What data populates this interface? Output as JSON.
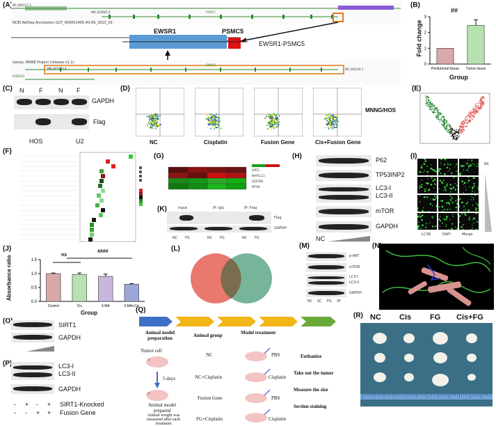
{
  "panels": {
    "A": "(A)",
    "B": "(B)",
    "C": "(C)",
    "D": "(D)",
    "E": "(E)",
    "F": "(F)",
    "G": "(G)",
    "H": "(H)",
    "I": "(I)",
    "J": "(J)",
    "K": "(K)",
    "L": "(L)",
    "M": "(M)",
    "N": "(N)",
    "O": "(O)",
    "P": "(P)",
    "Q": "(Q)",
    "R": "(R)"
  },
  "panelA": {
    "top_track_text": "NCBI RefSeq Annotation GCF_000001405.40-RS_2023_03",
    "gene_left": "EWSR1",
    "gene_right": "PSMC5",
    "fusion_label": "EWSR1-PSMC5",
    "bottom_track_text": "Genes, MANE Project (release v1.1)",
    "psmc5_small": "PSMC5",
    "ewsr1_small": "EWSR1",
    "nm_top_left": "NP_060117.3",
    "nm_top2": "NM_002805.6",
    "nm_bot1": "NM_005243.4",
    "nm_bot2": "NP_005234.1",
    "rhbdd3": "RHBDD3"
  },
  "panelB": {
    "significance": "##",
    "ylabel": "Fold change",
    "xlabel": "Group",
    "chart_data": {
      "type": "bar",
      "categories": [
        "Peritumoral tissue",
        "Tumor tissue"
      ],
      "values": [
        1.0,
        2.45
      ],
      "errors": [
        0,
        0.35
      ],
      "ylim": [
        0,
        3
      ],
      "yticks": [
        "0",
        "1",
        "2",
        "3"
      ],
      "colors": [
        "#d9a8a8",
        "#b6e2b0"
      ]
    }
  },
  "panelC": {
    "lanes": [
      "N",
      "F",
      "N",
      "F"
    ],
    "row1": "GAPDH",
    "row2": "Flag",
    "cells": [
      "HOS",
      "U2"
    ]
  },
  "panelD": {
    "conditions": [
      "NC",
      "Cisplatin",
      "Fusion Gene",
      "Cis+Fusion Gene"
    ],
    "side": "MNNG/HOS"
  },
  "panelG": {
    "genes": [
      "SIRT1",
      "MAP1LC3",
      "SQSTM1",
      "MTOR"
    ]
  },
  "panelH": {
    "rows": [
      "P62",
      "TP53INP2",
      "LC3-I",
      "LC3-II",
      "mTOR",
      "GAPDH"
    ],
    "nc": "NC"
  },
  "panelI": {
    "cols": [
      "LC3B",
      "DAPI",
      "Merge"
    ],
    "nc": "NC"
  },
  "panelJ": {
    "ylabel": "Absorbance ratio",
    "xlabel": "Group",
    "ns": "ns",
    "sig": "####",
    "chart_data": {
      "type": "bar",
      "categories": [
        "Control",
        "Cis",
        "3-MA",
        "3-MA+Cis"
      ],
      "values": [
        1.0,
        0.97,
        0.9,
        0.62
      ],
      "errors": [
        0.02,
        0.05,
        0.08,
        0.02
      ],
      "ylim": [
        0,
        1.5
      ],
      "yticks": [
        "0.0",
        "0.5",
        "1.0",
        "1.5"
      ],
      "colors": [
        "#d9a8a8",
        "#b6e2b0",
        "#c9b6dd",
        "#9aa7d6"
      ]
    }
  },
  "panelK": {
    "cols": [
      "Input",
      "IP: IgG",
      "IP: Flag"
    ],
    "lanes": [
      "NC",
      "FG",
      "NC",
      "FG",
      "NC",
      "FG"
    ],
    "rows": [
      "Flag",
      "GAPDH"
    ]
  },
  "panelM": {
    "rows": [
      "p-AKT",
      "mTOR",
      "LC3-I",
      "LC3-II",
      "GAPDH"
    ],
    "lanes": [
      "NC",
      "SC",
      "FG",
      "SF"
    ]
  },
  "panelO": {
    "rows": [
      "SIRT1",
      "GAPDH"
    ]
  },
  "panelP": {
    "rows": [
      "LC3-I",
      "LC3-II",
      "GAPDH"
    ],
    "row_labels": [
      "SIRT1-Knocked",
      "Fusion Gene"
    ],
    "signs1": [
      "-",
      "+",
      "-",
      "+"
    ],
    "signs2": [
      "-",
      "-",
      "+",
      "+"
    ]
  },
  "panelQ": {
    "col1": "Animal model preparation",
    "col2": "Animal group",
    "col3": "Model treatment",
    "tumor_cell": "Tumor cell",
    "days": "5 days",
    "prepared": "Animal model prepared",
    "weight_note": "Animal weight was measured after each treatment",
    "groups": [
      "NC",
      "NC+Cisplatin",
      "Fusion Gene",
      "FG+Cisplatin"
    ],
    "treatments": [
      "PBS",
      "Cisplatin",
      "PBS",
      "Cisplatin"
    ],
    "steps": [
      "Euthanize",
      "Take out the tumor",
      "Measure the size",
      "Section staining"
    ]
  },
  "panelR": {
    "groups": [
      "NC",
      "Cis",
      "FG",
      "Cis+FG"
    ]
  }
}
